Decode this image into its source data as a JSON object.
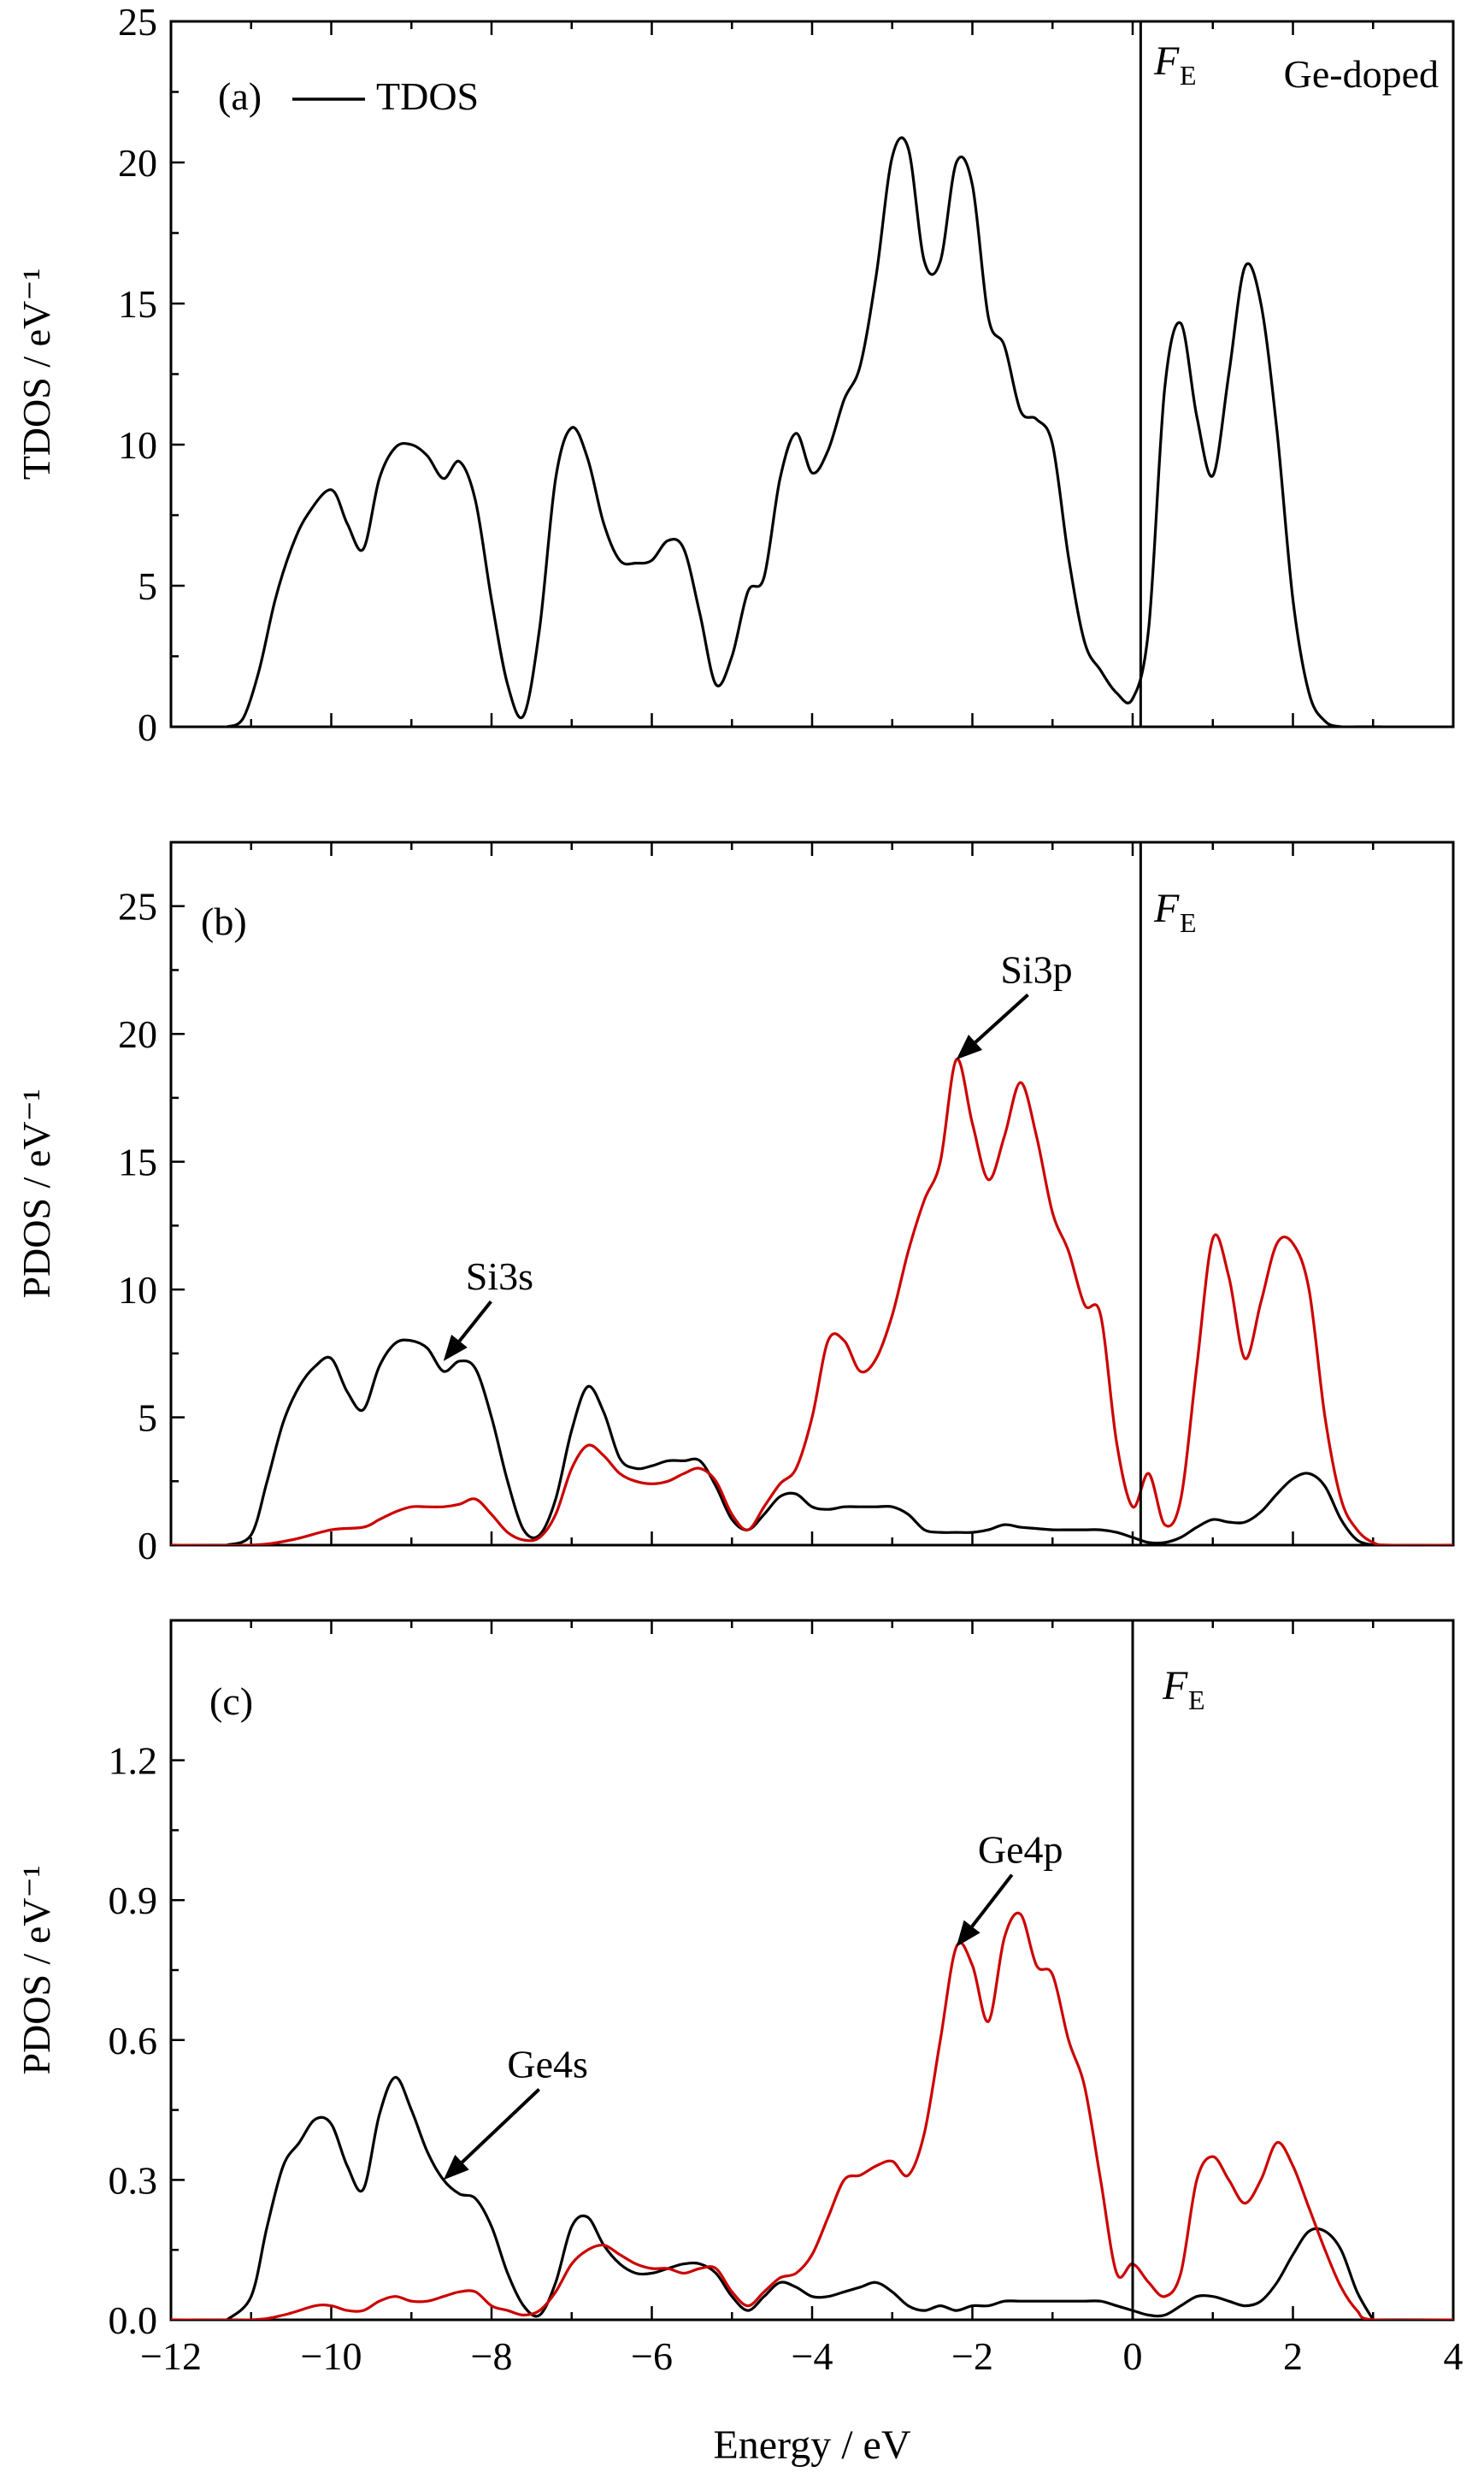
{
  "colors": {
    "black": "#000000",
    "red": "#cc0000"
  },
  "xaxis": {
    "label": "Energy / eV",
    "ticks": [
      -12,
      -10,
      -8,
      -6,
      -4,
      -2,
      0,
      2,
      4
    ],
    "tick_labels": [
      "−12",
      "−10",
      "−8",
      "−6",
      "−4",
      "−2",
      "0",
      "2",
      "4"
    ],
    "range": [
      -12,
      4
    ]
  },
  "chart_data": [
    {
      "type": "line",
      "panel": "(a)",
      "ylabel": "TDOS / eV⁻¹",
      "ylim": [
        0,
        25
      ],
      "yticks": [
        0,
        5,
        10,
        15,
        20,
        25
      ],
      "ytick_labels": [
        "0",
        "5",
        "10",
        "15",
        "20",
        "25"
      ],
      "fermi_x": 0.1,
      "fermi_label": "F",
      "fermi_sub": "E",
      "corner_text": "Ge-doped",
      "legend": {
        "position": "top-left",
        "entries": [
          "TDOS"
        ]
      },
      "series": [
        {
          "name": "TDOS",
          "color": "#000000",
          "x": [
            -11.3,
            -11.1,
            -10.9,
            -10.7,
            -10.5,
            -10.3,
            -10.0,
            -9.8,
            -9.6,
            -9.4,
            -9.2,
            -9.0,
            -8.8,
            -8.6,
            -8.4,
            -8.2,
            -8.0,
            -7.8,
            -7.6,
            -7.4,
            -7.2,
            -7.0,
            -6.8,
            -6.6,
            -6.4,
            -6.2,
            -6.0,
            -5.8,
            -5.6,
            -5.4,
            -5.2,
            -5.0,
            -4.8,
            -4.6,
            -4.4,
            -4.2,
            -4.0,
            -3.8,
            -3.6,
            -3.4,
            -3.2,
            -3.0,
            -2.8,
            -2.6,
            -2.4,
            -2.2,
            -2.0,
            -1.8,
            -1.6,
            -1.4,
            -1.2,
            -1.0,
            -0.8,
            -0.6,
            -0.4,
            -0.2,
            0.0,
            0.2,
            0.4,
            0.6,
            0.8,
            1.0,
            1.2,
            1.4,
            1.6,
            1.8,
            2.0,
            2.2,
            2.4,
            2.6,
            2.8,
            3.0,
            3.1
          ],
          "y": [
            0.0,
            0.3,
            2.0,
            4.5,
            6.3,
            7.5,
            8.4,
            7.2,
            6.3,
            8.8,
            9.9,
            10.0,
            9.6,
            8.8,
            9.4,
            8.0,
            4.5,
            1.5,
            0.4,
            3.5,
            8.8,
            10.6,
            9.5,
            7.2,
            5.9,
            5.8,
            5.9,
            6.6,
            6.3,
            4.0,
            1.5,
            2.5,
            4.8,
            5.3,
            8.8,
            10.4,
            9.0,
            9.8,
            11.6,
            12.8,
            16.0,
            20.2,
            20.5,
            16.5,
            16.5,
            20.0,
            19.2,
            14.5,
            13.5,
            11.2,
            10.9,
            10.0,
            6.0,
            3.0,
            2.0,
            1.2,
            1.0,
            3.5,
            12.0,
            14.3,
            11.0,
            8.9,
            12.5,
            16.3,
            15.0,
            10.5,
            4.5,
            1.2,
            0.2,
            0.0,
            0.0,
            0.0,
            0.0
          ]
        }
      ]
    },
    {
      "type": "line",
      "panel": "(b)",
      "ylabel": "PDOS / eV⁻¹",
      "ylim": [
        0,
        27.5
      ],
      "yticks": [
        0,
        5,
        10,
        15,
        20,
        25
      ],
      "ytick_labels": [
        "0",
        "5",
        "10",
        "15",
        "20",
        "25"
      ],
      "fermi_x": 0.1,
      "fermi_label": "F",
      "fermi_sub": "E",
      "annotations": [
        {
          "text": "Si3s",
          "x": -7.9,
          "y": 10.0,
          "arrow_to_x": -8.6,
          "arrow_to_y": 7.2
        },
        {
          "text": "Si3p",
          "x": -1.2,
          "y": 22.0,
          "arrow_to_x": -2.2,
          "arrow_to_y": 19.0
        }
      ],
      "series": [
        {
          "name": "Si3s",
          "color": "#000000",
          "x": [
            -11.3,
            -11.0,
            -10.8,
            -10.6,
            -10.4,
            -10.2,
            -10.0,
            -9.8,
            -9.6,
            -9.4,
            -9.2,
            -9.0,
            -8.8,
            -8.6,
            -8.4,
            -8.2,
            -8.0,
            -7.8,
            -7.6,
            -7.4,
            -7.2,
            -7.0,
            -6.8,
            -6.6,
            -6.4,
            -6.2,
            -6.0,
            -5.8,
            -5.6,
            -5.4,
            -5.2,
            -5.0,
            -4.8,
            -4.6,
            -4.4,
            -4.2,
            -4.0,
            -3.8,
            -3.6,
            -3.4,
            -3.2,
            -3.0,
            -2.8,
            -2.6,
            -2.4,
            -2.2,
            -2.0,
            -1.8,
            -1.6,
            -1.4,
            -1.2,
            -1.0,
            -0.8,
            -0.6,
            -0.4,
            -0.2,
            0.0,
            0.2,
            0.4,
            0.6,
            0.8,
            1.0,
            1.2,
            1.4,
            1.6,
            1.8,
            2.0,
            2.2,
            2.4,
            2.6,
            2.8,
            3.0
          ],
          "y": [
            0.0,
            0.4,
            2.5,
            4.8,
            6.2,
            7.0,
            7.3,
            6.0,
            5.3,
            7.0,
            7.9,
            8.0,
            7.7,
            6.8,
            7.2,
            6.9,
            5.0,
            2.5,
            0.6,
            0.4,
            1.8,
            4.5,
            6.2,
            5.2,
            3.4,
            3.0,
            3.1,
            3.3,
            3.3,
            3.3,
            2.3,
            1.0,
            0.6,
            1.2,
            1.9,
            2.0,
            1.5,
            1.4,
            1.5,
            1.5,
            1.5,
            1.5,
            1.2,
            0.6,
            0.5,
            0.5,
            0.5,
            0.6,
            0.8,
            0.7,
            0.65,
            0.6,
            0.6,
            0.6,
            0.6,
            0.5,
            0.3,
            0.1,
            0.1,
            0.3,
            0.7,
            1.0,
            0.9,
            0.9,
            1.3,
            2.0,
            2.6,
            2.8,
            2.3,
            1.0,
            0.2,
            0.0
          ]
        },
        {
          "name": "Si3p",
          "color": "#cc0000",
          "x": [
            -12.0,
            -11.0,
            -10.5,
            -10.0,
            -9.6,
            -9.4,
            -9.2,
            -9.0,
            -8.8,
            -8.6,
            -8.4,
            -8.2,
            -8.0,
            -7.8,
            -7.6,
            -7.4,
            -7.2,
            -7.0,
            -6.8,
            -6.6,
            -6.4,
            -6.2,
            -6.0,
            -5.8,
            -5.6,
            -5.4,
            -5.2,
            -5.0,
            -4.8,
            -4.6,
            -4.4,
            -4.2,
            -4.0,
            -3.8,
            -3.6,
            -3.4,
            -3.2,
            -3.0,
            -2.8,
            -2.6,
            -2.4,
            -2.2,
            -2.0,
            -1.8,
            -1.6,
            -1.4,
            -1.2,
            -1.0,
            -0.8,
            -0.6,
            -0.4,
            -0.2,
            0.0,
            0.2,
            0.4,
            0.6,
            0.8,
            1.0,
            1.2,
            1.4,
            1.6,
            1.8,
            2.0,
            2.2,
            2.4,
            2.6,
            2.8,
            3.0,
            3.2,
            4.0
          ],
          "y": [
            0.0,
            0.0,
            0.2,
            0.6,
            0.7,
            1.0,
            1.3,
            1.5,
            1.5,
            1.5,
            1.6,
            1.8,
            1.2,
            0.5,
            0.2,
            0.3,
            1.2,
            3.0,
            3.9,
            3.5,
            2.8,
            2.5,
            2.4,
            2.5,
            2.8,
            3.0,
            2.5,
            1.2,
            0.6,
            1.5,
            2.4,
            3.0,
            5.0,
            8.0,
            8.0,
            6.8,
            7.3,
            9.0,
            11.5,
            13.5,
            15.0,
            19.0,
            16.5,
            14.3,
            16.0,
            18.1,
            16.0,
            13.0,
            11.5,
            9.4,
            9.0,
            4.0,
            1.5,
            2.8,
            0.8,
            1.8,
            7.0,
            12.0,
            10.5,
            7.3,
            9.5,
            11.8,
            11.8,
            10.0,
            5.0,
            1.8,
            0.6,
            0.1,
            0.0,
            0.0
          ]
        }
      ]
    },
    {
      "type": "line",
      "panel": "(c)",
      "ylabel": "PDOS / eV⁻¹",
      "ylim": [
        0,
        1.5
      ],
      "yticks": [
        0.0,
        0.3,
        0.6,
        0.9,
        1.2
      ],
      "ytick_labels": [
        "0.0",
        "0.3",
        "0.6",
        "0.9",
        "1.2"
      ],
      "fermi_x": 0.0,
      "fermi_label": "F",
      "fermi_sub": "E",
      "annotations": [
        {
          "text": "Ge4s",
          "x": -7.3,
          "y": 0.52,
          "arrow_to_x": -8.6,
          "arrow_to_y": 0.3
        },
        {
          "text": "Ge4p",
          "x": -1.4,
          "y": 0.98,
          "arrow_to_x": -2.2,
          "arrow_to_y": 0.8
        }
      ],
      "series": [
        {
          "name": "Ge4s",
          "color": "#000000",
          "x": [
            -11.3,
            -11.0,
            -10.8,
            -10.6,
            -10.4,
            -10.2,
            -10.0,
            -9.8,
            -9.6,
            -9.4,
            -9.2,
            -9.0,
            -8.8,
            -8.6,
            -8.4,
            -8.2,
            -8.0,
            -7.8,
            -7.6,
            -7.4,
            -7.2,
            -7.0,
            -6.8,
            -6.6,
            -6.4,
            -6.2,
            -6.0,
            -5.8,
            -5.6,
            -5.4,
            -5.2,
            -5.0,
            -4.8,
            -4.6,
            -4.4,
            -4.2,
            -4.0,
            -3.8,
            -3.6,
            -3.4,
            -3.2,
            -3.0,
            -2.8,
            -2.6,
            -2.4,
            -2.2,
            -2.0,
            -1.8,
            -1.6,
            -1.4,
            -1.2,
            -1.0,
            -0.8,
            -0.6,
            -0.4,
            -0.2,
            0.0,
            0.2,
            0.4,
            0.6,
            0.8,
            1.0,
            1.2,
            1.4,
            1.6,
            1.8,
            2.0,
            2.2,
            2.4,
            2.6,
            2.8,
            3.0
          ],
          "y": [
            0.0,
            0.05,
            0.2,
            0.33,
            0.38,
            0.43,
            0.42,
            0.33,
            0.28,
            0.44,
            0.52,
            0.45,
            0.36,
            0.3,
            0.27,
            0.26,
            0.2,
            0.1,
            0.03,
            0.01,
            0.08,
            0.2,
            0.22,
            0.16,
            0.12,
            0.1,
            0.1,
            0.11,
            0.12,
            0.12,
            0.1,
            0.05,
            0.02,
            0.05,
            0.08,
            0.07,
            0.05,
            0.05,
            0.06,
            0.07,
            0.08,
            0.06,
            0.03,
            0.02,
            0.03,
            0.02,
            0.03,
            0.03,
            0.04,
            0.04,
            0.04,
            0.04,
            0.04,
            0.04,
            0.04,
            0.03,
            0.02,
            0.01,
            0.01,
            0.03,
            0.05,
            0.05,
            0.04,
            0.03,
            0.04,
            0.08,
            0.14,
            0.19,
            0.19,
            0.15,
            0.06,
            0.0
          ]
        },
        {
          "name": "Ge4p",
          "color": "#cc0000",
          "x": [
            -12.0,
            -11.0,
            -10.6,
            -10.2,
            -10.0,
            -9.8,
            -9.6,
            -9.4,
            -9.2,
            -9.0,
            -8.8,
            -8.6,
            -8.4,
            -8.2,
            -8.0,
            -7.8,
            -7.6,
            -7.4,
            -7.2,
            -7.0,
            -6.8,
            -6.6,
            -6.4,
            -6.2,
            -6.0,
            -5.8,
            -5.6,
            -5.4,
            -5.2,
            -5.0,
            -4.8,
            -4.6,
            -4.4,
            -4.2,
            -4.0,
            -3.8,
            -3.6,
            -3.4,
            -3.2,
            -3.0,
            -2.8,
            -2.6,
            -2.4,
            -2.2,
            -2.0,
            -1.8,
            -1.6,
            -1.4,
            -1.2,
            -1.0,
            -0.8,
            -0.6,
            -0.4,
            -0.2,
            0.0,
            0.2,
            0.4,
            0.6,
            0.8,
            1.0,
            1.2,
            1.4,
            1.6,
            1.8,
            2.0,
            2.2,
            2.4,
            2.6,
            2.8,
            3.0,
            4.0
          ],
          "y": [
            0.0,
            0.0,
            0.01,
            0.03,
            0.03,
            0.02,
            0.02,
            0.04,
            0.05,
            0.04,
            0.04,
            0.05,
            0.06,
            0.06,
            0.03,
            0.02,
            0.01,
            0.02,
            0.06,
            0.12,
            0.15,
            0.16,
            0.14,
            0.12,
            0.11,
            0.11,
            0.1,
            0.11,
            0.11,
            0.06,
            0.03,
            0.06,
            0.09,
            0.1,
            0.14,
            0.22,
            0.3,
            0.31,
            0.33,
            0.34,
            0.31,
            0.4,
            0.6,
            0.8,
            0.76,
            0.64,
            0.82,
            0.87,
            0.76,
            0.74,
            0.6,
            0.5,
            0.3,
            0.1,
            0.12,
            0.08,
            0.05,
            0.1,
            0.3,
            0.35,
            0.3,
            0.25,
            0.3,
            0.38,
            0.33,
            0.24,
            0.15,
            0.07,
            0.02,
            0.0,
            0.0
          ]
        }
      ]
    }
  ]
}
